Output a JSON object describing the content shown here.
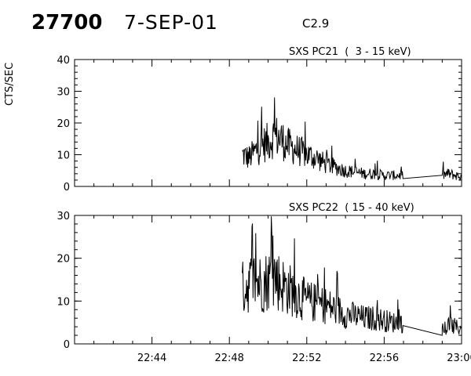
{
  "header": {
    "event_id": "27700",
    "date": "7-SEP-01",
    "goes_class": "C2.9"
  },
  "chart_data": [
    {
      "type": "line",
      "title": "SXS PC21  (  3 - 15 keV)",
      "ylabel": "CTS/SEC",
      "xlabel": "",
      "ylim": [
        0,
        40
      ],
      "yticks": [
        0,
        10,
        20,
        30,
        40
      ],
      "xlim": [
        "22:40",
        "23:00"
      ],
      "xticks": [
        "22:44",
        "22:48",
        "22:52",
        "22:56",
        "23:00"
      ],
      "grid": false,
      "series": [
        {
          "x": [
            "22:48:40",
            "22:49:00",
            "22:49:20",
            "22:49:40",
            "22:50:00",
            "22:50:20",
            "22:50:40",
            "22:51:00",
            "22:51:20",
            "22:51:40",
            "22:52:00",
            "22:52:30",
            "22:53:00",
            "22:53:30",
            "22:54:00",
            "22:54:30",
            "22:55:00",
            "22:55:30",
            "22:56:00",
            "22:56:30",
            "22:57:00",
            "22:59:00",
            "22:59:20",
            "22:59:40",
            "23:00:00"
          ],
          "values": [
            10,
            9,
            11,
            13,
            14,
            16,
            15,
            13,
            12,
            11,
            10,
            9,
            7,
            6,
            5,
            4.5,
            4,
            4,
            3.5,
            3.5,
            3.5,
            3.5,
            4,
            3.5,
            3
          ]
        }
      ]
    },
    {
      "type": "line",
      "title": "SXS PC22  ( 15 - 40 keV)",
      "ylabel": "",
      "xlabel": "",
      "ylim": [
        0,
        30
      ],
      "yticks": [
        0,
        10,
        20,
        30
      ],
      "xlim": [
        "22:40",
        "23:00"
      ],
      "xticks": [
        "22:44",
        "22:48",
        "22:52",
        "22:56",
        "23:00"
      ],
      "grid": false,
      "series": [
        {
          "x": [
            "22:48:40",
            "22:49:00",
            "22:49:20",
            "22:49:40",
            "22:50:00",
            "22:50:20",
            "22:50:40",
            "22:51:00",
            "22:51:20",
            "22:51:40",
            "22:52:00",
            "22:52:30",
            "22:53:00",
            "22:53:30",
            "22:54:00",
            "22:54:30",
            "22:55:00",
            "22:55:30",
            "22:56:00",
            "22:56:30",
            "22:57:00",
            "22:59:00",
            "22:59:20",
            "22:59:40",
            "23:00:00"
          ],
          "values": [
            13,
            14,
            15,
            14,
            15,
            16,
            14,
            13,
            12,
            11,
            10,
            9.5,
            9,
            8,
            7,
            6.5,
            6,
            6,
            5.5,
            5,
            5,
            2,
            4.5,
            4,
            3.5
          ]
        }
      ]
    }
  ]
}
